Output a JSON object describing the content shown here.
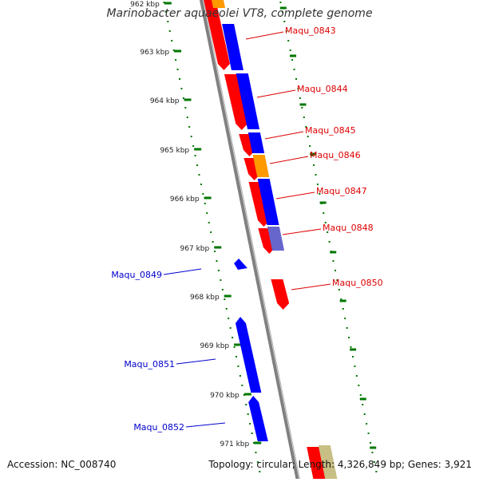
{
  "title": "Marinobacter aquaeolei VT8, complete genome",
  "footer": {
    "accession": "Accession: NC_008740",
    "summary": "Topology: circular; Length: 4,326,849 bp; Genes: 3,921"
  },
  "colors": {
    "forward_cds": "#ff0000",
    "reverse_cds": "#0000ff",
    "orange_feature": "#ff9900",
    "light_blue_feature": "#6666cc",
    "khaki_feature": "#c8bf85",
    "ticks": "#007700",
    "backbone": "#808080",
    "forward_label": "#dd0000",
    "reverse_label": "#0000cc"
  },
  "scale_ticks": [
    "962 kbp",
    "963 kbp",
    "964 kbp",
    "965 kbp",
    "966 kbp",
    "967 kbp",
    "968 kbp",
    "969 kbp",
    "970 kbp",
    "971 kbp"
  ],
  "genes": [
    {
      "name": "Maqu_0843",
      "color": "red"
    },
    {
      "name": "Maqu_0844",
      "color": "red"
    },
    {
      "name": "Maqu_0845",
      "color": "red"
    },
    {
      "name": "Maqu_0846",
      "color": "red"
    },
    {
      "name": "Maqu_0847",
      "color": "red"
    },
    {
      "name": "Maqu_0848",
      "color": "red"
    },
    {
      "name": "Maqu_0849",
      "color": "blue"
    },
    {
      "name": "Maqu_0850",
      "color": "red"
    },
    {
      "name": "Maqu_0851",
      "color": "blue"
    },
    {
      "name": "Maqu_0852",
      "color": "blue"
    }
  ]
}
